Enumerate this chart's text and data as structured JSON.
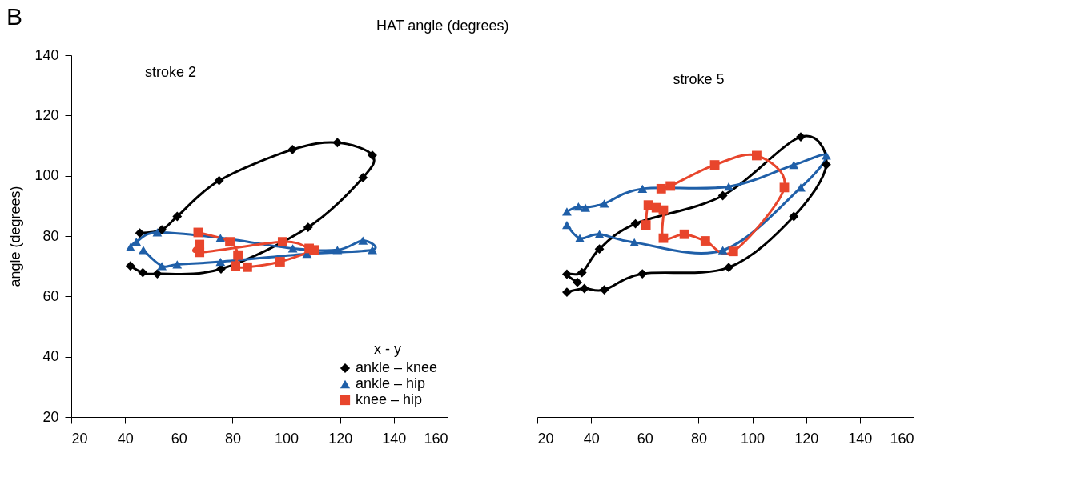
{
  "chart_data": [
    {
      "type": "line",
      "title": "stroke 2",
      "ylabel": "angle (degrees)",
      "annotations": [
        "B",
        "HAT angle (degrees)"
      ],
      "legend_title": "x - y",
      "legend": "bottom right",
      "xlim": [
        20,
        160
      ],
      "xticks": [
        20,
        40,
        60,
        80,
        100,
        120,
        140,
        160
      ],
      "ylim": [
        20,
        140
      ],
      "yticks": [
        20,
        40,
        60,
        80,
        100,
        120,
        140
      ],
      "grid": false,
      "series": [
        {
          "name": "ankle – knee",
          "color": "#000000",
          "marker": "diamond",
          "x": [
            42.0,
            46.6,
            52.0,
            75.7,
            108.1,
            128.5,
            132.0,
            119.0,
            102.3,
            75.0,
            59.4,
            53.7,
            45.5
          ],
          "values": [
            70.1,
            67.9,
            67.5,
            69.1,
            82.9,
            99.4,
            106.8,
            111.0,
            108.7,
            98.4,
            86.5,
            82.1,
            81.0
          ]
        },
        {
          "name": "ankle – hip",
          "color": "#1f5fa8",
          "marker": "triangle",
          "x": [
            42.0,
            44.2,
            52.0,
            75.5,
            102.4,
            119.0,
            128.5,
            132.0,
            107.7,
            75.5,
            59.4,
            53.7,
            46.8
          ],
          "values": [
            76.3,
            78.1,
            81.2,
            79.4,
            75.9,
            75.4,
            78.5,
            75.4,
            74.1,
            71.5,
            70.6,
            70.1,
            75.4
          ]
        },
        {
          "name": "knee – hip",
          "color": "#e8452c",
          "marker": "square",
          "x": [
            67.2,
            79.0,
            82.0,
            81.1,
            85.5,
            97.7,
            110.3,
            108.5,
            98.6,
            67.7,
            67.7
          ],
          "values": [
            81.2,
            78.1,
            73.7,
            70.1,
            69.7,
            71.5,
            75.4,
            75.9,
            78.1,
            74.6,
            77.2
          ]
        }
      ]
    },
    {
      "type": "line",
      "title": "stroke 5",
      "tick_labels": "x",
      "xlim": [
        20,
        160
      ],
      "xticks": [
        20,
        40,
        60,
        80,
        100,
        120,
        140,
        160
      ],
      "ylim": [
        20,
        140
      ],
      "grid": false,
      "series": [
        {
          "color": "#000000",
          "marker": "diamond",
          "x": [
            31.0,
            37.5,
            44.9,
            59.1,
            91.2,
            115.4,
            127.5,
            118.0,
            89.0,
            56.5,
            43.1,
            36.6,
            31.0,
            34.9
          ],
          "values": [
            61.4,
            62.6,
            62.2,
            67.5,
            69.6,
            86.5,
            103.7,
            112.9,
            93.4,
            84.1,
            75.7,
            67.9,
            67.4,
            64.7
          ]
        },
        {
          "color": "#1f5fa8",
          "marker": "triangle",
          "x": [
            31.0,
            35.8,
            43.1,
            56.1,
            89.0,
            118.0,
            127.5,
            115.4,
            91.2,
            59.1,
            44.9,
            37.9,
            35.3,
            31.0
          ],
          "values": [
            83.7,
            79.3,
            80.6,
            77.9,
            75.3,
            96.1,
            106.7,
            103.6,
            96.4,
            95.7,
            90.8,
            89.4,
            89.8,
            88.1
          ]
        },
        {
          "color": "#e8452c",
          "marker": "square",
          "x": [
            60.4,
            61.3,
            64.3,
            66.9,
            66.9,
            74.7,
            82.5,
            92.9,
            111.9,
            101.6,
            86.0,
            69.5,
            66.1
          ],
          "values": [
            83.7,
            90.3,
            89.4,
            88.6,
            79.3,
            80.6,
            78.4,
            74.9,
            96.1,
            106.7,
            103.6,
            96.6,
            95.7
          ]
        }
      ]
    }
  ]
}
